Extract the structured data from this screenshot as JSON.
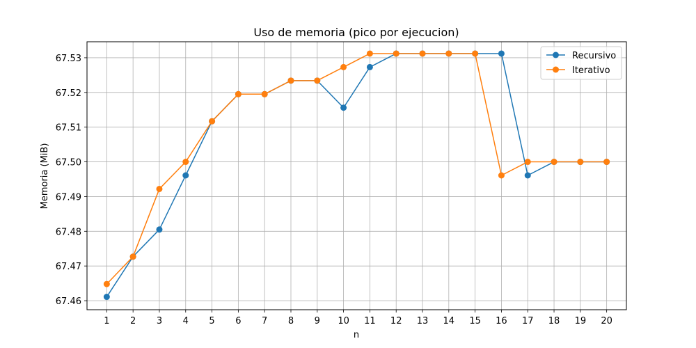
{
  "chart_data": {
    "type": "line",
    "title": "Uso de memoria (pico por ejecucion)",
    "xlabel": "n",
    "ylabel": "Memoria (MiB)",
    "x": [
      1,
      2,
      3,
      4,
      5,
      6,
      7,
      8,
      9,
      10,
      11,
      12,
      13,
      14,
      15,
      16,
      17,
      18,
      19,
      20
    ],
    "x_ticks": [
      "1",
      "2",
      "3",
      "4",
      "5",
      "6",
      "7",
      "8",
      "9",
      "10",
      "11",
      "12",
      "13",
      "14",
      "15",
      "16",
      "17",
      "18",
      "19",
      "20"
    ],
    "y_ticks": [
      "67.46",
      "67.47",
      "67.48",
      "67.49",
      "67.50",
      "67.51",
      "67.52",
      "67.53"
    ],
    "y_tick_values": [
      67.46,
      67.47,
      67.48,
      67.49,
      67.5,
      67.51,
      67.52,
      67.53
    ],
    "xlim": [
      0.25,
      20.75
    ],
    "ylim": [
      67.4574,
      67.5346
    ],
    "grid": true,
    "legend_position": "top-right",
    "series": [
      {
        "name": "Recursivo",
        "color": "#1f77b4",
        "marker": "circle",
        "values": [
          67.4611,
          67.4727,
          67.4805,
          67.4961,
          67.5117,
          67.5195,
          67.5195,
          67.5234,
          67.5234,
          67.5156,
          67.5273,
          67.5312,
          67.5312,
          67.5312,
          67.5312,
          67.5312,
          67.4961,
          67.5,
          67.5,
          67.5
        ]
      },
      {
        "name": "Iterativo",
        "color": "#ff7f0e",
        "marker": "circle",
        "values": [
          67.4648,
          67.4727,
          67.4922,
          67.5,
          67.5117,
          67.5195,
          67.5195,
          67.5234,
          67.5234,
          67.5273,
          67.5312,
          67.5312,
          67.5312,
          67.5312,
          67.5312,
          67.4961,
          67.5,
          67.5,
          67.5,
          67.5
        ]
      }
    ]
  }
}
